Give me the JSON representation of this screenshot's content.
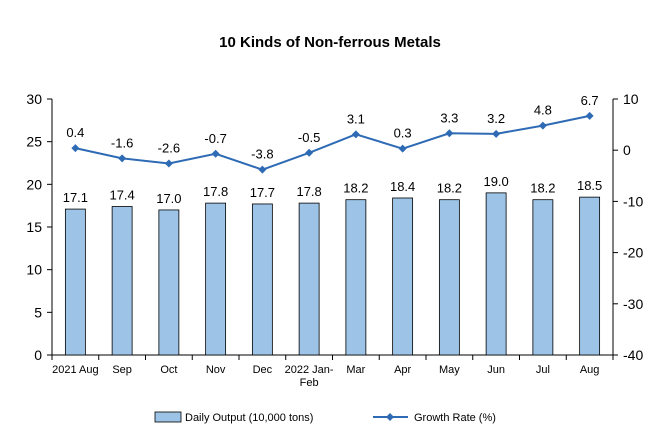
{
  "chart_data": {
    "type": "bar",
    "title": "10 Kinds of Non-ferrous Metals",
    "categories": [
      [
        "2021 Aug"
      ],
      [
        "Sep"
      ],
      [
        "Oct"
      ],
      [
        "Nov"
      ],
      [
        "Dec"
      ],
      [
        "2022 Jan-",
        "Feb"
      ],
      [
        "Mar"
      ],
      [
        "Apr"
      ],
      [
        "May"
      ],
      [
        "Jun"
      ],
      [
        "Jul"
      ],
      [
        "Aug"
      ]
    ],
    "series": [
      {
        "name": "Daily Output (10,000 tons)",
        "type": "bar",
        "axis": "left",
        "color": "#9dc3e6",
        "values": [
          17.1,
          17.4,
          17.0,
          17.8,
          17.7,
          17.8,
          18.2,
          18.4,
          18.2,
          19.0,
          18.2,
          18.5
        ],
        "labels": [
          "17.1",
          "17.4",
          "17.0",
          "17.8",
          "17.7",
          "17.8",
          "18.2",
          "18.4",
          "18.2",
          "19.0",
          "18.2",
          "18.5"
        ]
      },
      {
        "name": "Growth Rate (%)",
        "type": "line",
        "axis": "right",
        "color": "#2e6bb4",
        "values": [
          0.4,
          -1.6,
          -2.6,
          -0.7,
          -3.8,
          -0.5,
          3.1,
          0.3,
          3.3,
          3.2,
          4.8,
          6.7
        ],
        "labels": [
          "0.4",
          "-1.6",
          "-2.6",
          "-0.7",
          "-3.8",
          "-0.5",
          "3.1",
          "0.3",
          "3.3",
          "3.2",
          "4.8",
          "6.7"
        ]
      }
    ],
    "y_left": {
      "min": 0,
      "max": 30,
      "ticks": [
        0,
        5,
        10,
        15,
        20,
        25,
        30
      ]
    },
    "y_right": {
      "min": -40,
      "max": 10,
      "ticks": [
        -40,
        -30,
        -20,
        -10,
        0,
        10
      ]
    },
    "grid": false,
    "legend_position": "bottom"
  }
}
